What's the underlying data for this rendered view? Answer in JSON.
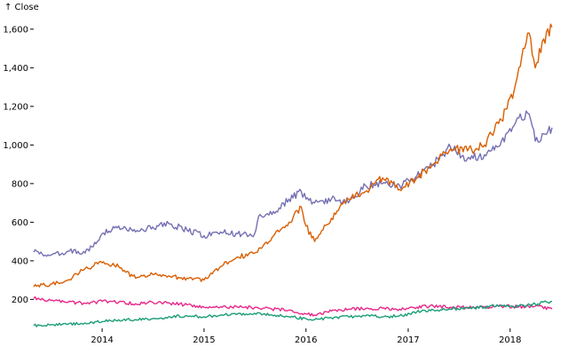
{
  "chart_data": {
    "type": "line",
    "title": "",
    "xlabel": "",
    "ylabel": "↑ Close",
    "ylim": [
      50,
      1650
    ],
    "xlim": [
      "2013-05-01",
      "2018-05-31"
    ],
    "y_ticks": [
      200,
      400,
      600,
      800,
      1000,
      1200,
      1400,
      1600
    ],
    "y_tick_labels": [
      "200",
      "400",
      "600",
      "800",
      "1,000",
      "1,200",
      "1,400",
      "1,600"
    ],
    "x_ticks": [
      "2014-01-01",
      "2015-01-01",
      "2016-01-01",
      "2017-01-01",
      "2018-01-01"
    ],
    "x_tick_labels": [
      "2014",
      "2015",
      "2016",
      "2017",
      "2018"
    ],
    "grid": false,
    "legend": "none",
    "series": [
      {
        "color": "#e7298a",
        "x": [
          "2013-05-01",
          "2013-07-01",
          "2013-09-01",
          "2013-11-01",
          "2014-01-01",
          "2014-03-01",
          "2014-05-01",
          "2014-07-01",
          "2014-09-01",
          "2014-11-01",
          "2015-01-01",
          "2015-03-01",
          "2015-05-01",
          "2015-07-01",
          "2015-09-01",
          "2015-11-01",
          "2016-01-01",
          "2016-02-01",
          "2016-04-01",
          "2016-06-01",
          "2016-08-01",
          "2016-10-01",
          "2016-12-01",
          "2017-02-01",
          "2017-04-01",
          "2017-06-01",
          "2017-08-01",
          "2017-10-01",
          "2017-12-01",
          "2018-02-01",
          "2018-04-01",
          "2018-05-31"
        ],
        "y": [
          205,
          195,
          185,
          180,
          190,
          185,
          178,
          185,
          180,
          172,
          160,
          162,
          160,
          158,
          150,
          145,
          125,
          120,
          140,
          150,
          152,
          155,
          150,
          160,
          165,
          160,
          158,
          160,
          165,
          162,
          165,
          150
        ]
      },
      {
        "color": "#1b9e77",
        "x": [
          "2013-05-01",
          "2013-07-01",
          "2013-09-01",
          "2013-11-01",
          "2014-01-01",
          "2014-03-01",
          "2014-05-01",
          "2014-07-01",
          "2014-09-01",
          "2014-11-01",
          "2015-01-01",
          "2015-03-01",
          "2015-05-01",
          "2015-07-01",
          "2015-09-01",
          "2015-11-01",
          "2016-01-01",
          "2016-02-01",
          "2016-04-01",
          "2016-06-01",
          "2016-08-01",
          "2016-10-01",
          "2016-12-01",
          "2017-02-01",
          "2017-04-01",
          "2017-06-01",
          "2017-08-01",
          "2017-10-01",
          "2017-12-01",
          "2018-02-01",
          "2018-04-01",
          "2018-05-31"
        ],
        "y": [
          65,
          68,
          72,
          78,
          85,
          95,
          95,
          100,
          110,
          115,
          110,
          120,
          125,
          128,
          120,
          110,
          100,
          95,
          105,
          110,
          115,
          110,
          115,
          135,
          145,
          150,
          155,
          160,
          170,
          165,
          175,
          190
        ]
      },
      {
        "color": "#7570b3",
        "x": [
          "2013-05-01",
          "2013-07-01",
          "2013-09-01",
          "2013-11-01",
          "2013-12-15",
          "2014-01-01",
          "2014-03-01",
          "2014-05-01",
          "2014-07-01",
          "2014-09-01",
          "2014-11-01",
          "2015-01-01",
          "2015-03-01",
          "2015-05-01",
          "2015-07-01",
          "2015-07-20",
          "2015-09-01",
          "2015-11-01",
          "2015-12-15",
          "2016-01-01",
          "2016-02-01",
          "2016-04-01",
          "2016-06-01",
          "2016-08-01",
          "2016-10-01",
          "2016-12-01",
          "2017-02-01",
          "2017-04-01",
          "2017-06-01",
          "2017-08-01",
          "2017-10-01",
          "2017-12-01",
          "2018-01-15",
          "2018-02-01",
          "2018-03-10",
          "2018-04-01",
          "2018-05-31"
        ],
        "y": [
          445,
          430,
          450,
          440,
          500,
          540,
          580,
          550,
          575,
          590,
          560,
          530,
          550,
          540,
          540,
          640,
          640,
          720,
          760,
          720,
          700,
          720,
          700,
          790,
          800,
          790,
          840,
          900,
          990,
          930,
          950,
          1020,
          1100,
          1140,
          1160,
          1020,
          1090
        ]
      },
      {
        "color": "#d95f02",
        "x": [
          "2013-05-01",
          "2013-07-01",
          "2013-09-01",
          "2013-11-01",
          "2014-01-01",
          "2014-03-01",
          "2014-05-01",
          "2014-07-01",
          "2014-09-01",
          "2014-11-01",
          "2015-01-01",
          "2015-03-01",
          "2015-05-01",
          "2015-07-01",
          "2015-09-01",
          "2015-11-01",
          "2015-12-15",
          "2016-01-01",
          "2016-02-01",
          "2016-04-01",
          "2016-06-01",
          "2016-08-01",
          "2016-10-01",
          "2016-12-01",
          "2017-02-01",
          "2017-04-01",
          "2017-06-01",
          "2017-08-01",
          "2017-10-01",
          "2017-12-01",
          "2018-01-15",
          "2018-02-01",
          "2018-03-10",
          "2018-04-01",
          "2018-05-01",
          "2018-05-31"
        ],
        "y": [
          265,
          280,
          300,
          360,
          390,
          370,
          310,
          330,
          320,
          310,
          300,
          370,
          420,
          440,
          520,
          600,
          680,
          580,
          500,
          620,
          720,
          760,
          830,
          770,
          830,
          900,
          980,
          970,
          1000,
          1130,
          1280,
          1400,
          1580,
          1400,
          1550,
          1610
        ]
      }
    ]
  }
}
